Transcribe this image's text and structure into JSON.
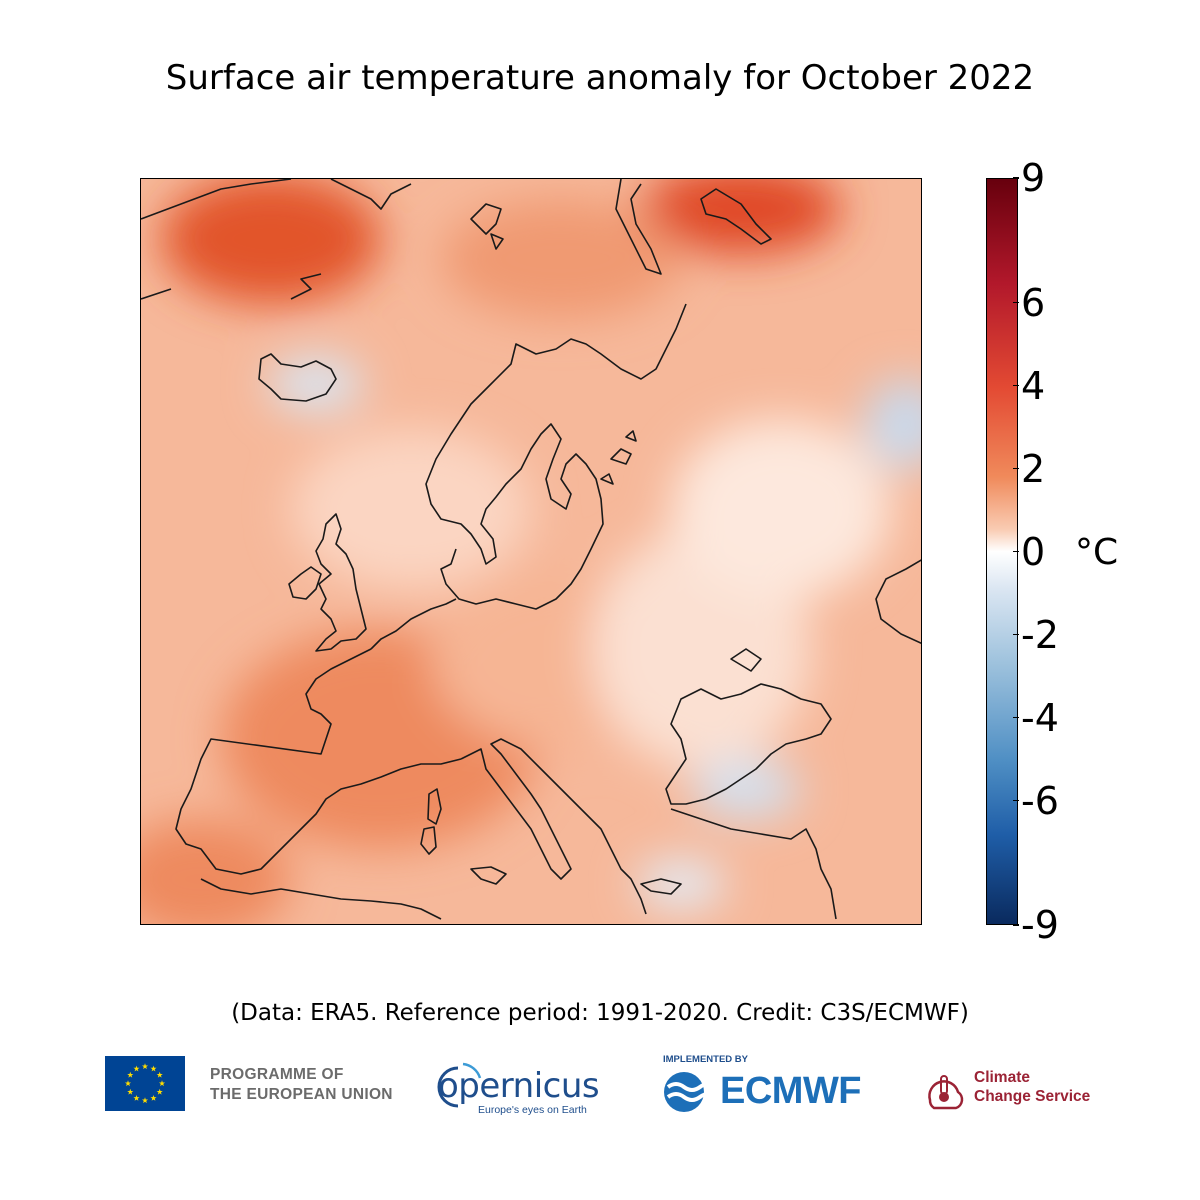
{
  "title": "Surface air temperature anomaly for October 2022",
  "map": {
    "region": "Europe",
    "variable": "Surface air temperature anomaly",
    "month": "October 2022"
  },
  "colorbar": {
    "unit": "°C",
    "range": [
      -9,
      9
    ],
    "ticks": [
      "9",
      "6",
      "4",
      "2",
      "0",
      "-2",
      "-4",
      "-6",
      "-9"
    ],
    "colors": {
      "max": "#67000d",
      "warm": "#e34a33",
      "zero": "#ffffff",
      "cool": "#9ec2dd",
      "min": "#0a2a5e"
    }
  },
  "credit": "(Data: ERA5.  Reference period: 1991-2020.  Credit: C3S/ECMWF)",
  "logos": {
    "programme_line1": "PROGRAMME OF",
    "programme_line2": "THE EUROPEAN UNION",
    "copernicus_word": "opernicus",
    "copernicus_tagline": "Europe's eyes on Earth",
    "implemented_by": "IMPLEMENTED BY",
    "ecmwf": "ECMWF",
    "c3s_line1": "Climate",
    "c3s_line2": "Change Service",
    "icons": [
      "eu-flag-icon",
      "copernicus-swirl-icon",
      "ecmwf-waves-icon",
      "thermometer-cloud-icon"
    ]
  }
}
